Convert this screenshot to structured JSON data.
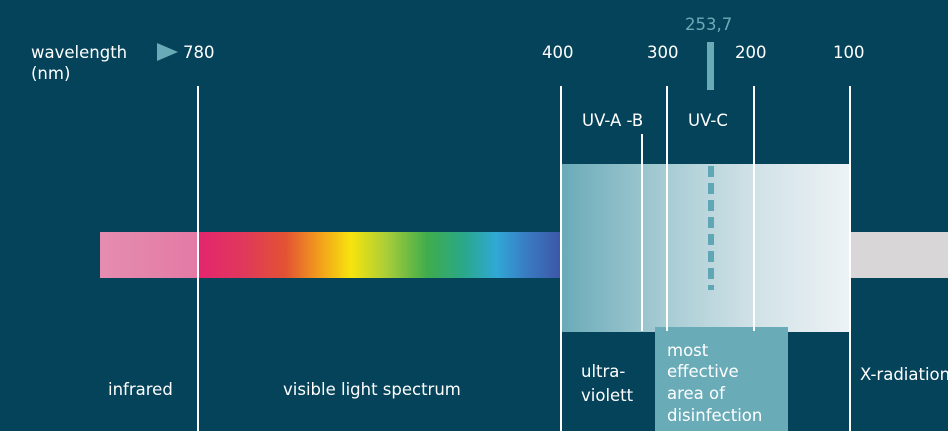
{
  "header": {
    "axis_label_line1": "wavelength",
    "axis_label_line2": "(nm)"
  },
  "scale": {
    "t780": "780",
    "t400": "400",
    "t300": "300",
    "t200": "200",
    "t100": "100",
    "peak": "253,7"
  },
  "uv_labels": {
    "uva_b": "UV-A -B",
    "uvc": "UV-C"
  },
  "regions": {
    "infrared": "infrared",
    "visible": "visible light spectrum",
    "uv_line1": "ultra-",
    "uv_line2": "violett",
    "disinfection": [
      "most",
      "effective",
      "area of",
      "disinfection"
    ],
    "xray": "X-radiation"
  },
  "colors": {
    "background": "#04435a",
    "accent": "#6aabb8",
    "xray_bar": "#d8d6d6"
  }
}
